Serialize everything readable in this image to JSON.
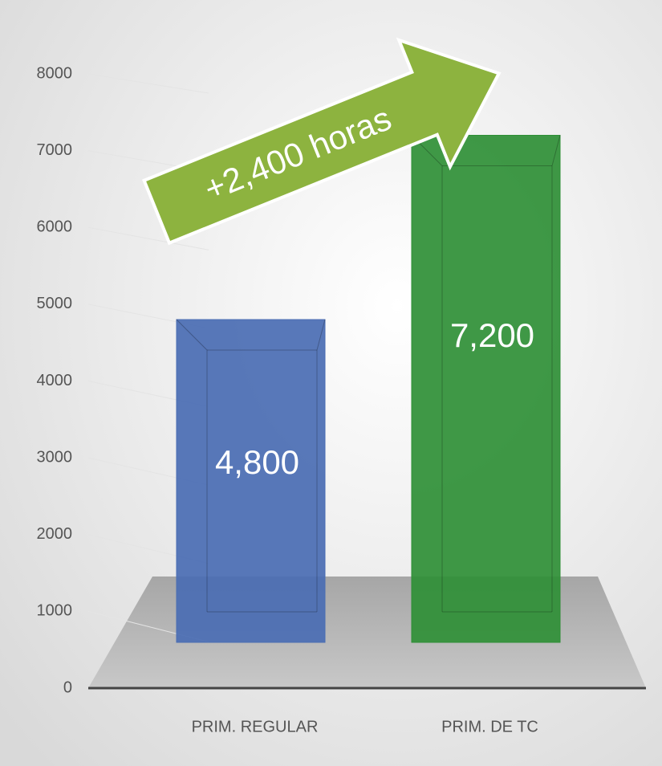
{
  "chart_data": {
    "type": "bar",
    "annotation": "+2,400 horas",
    "categories": [
      "PRIM. REGULAR",
      "PRIM. DE TC"
    ],
    "series": [
      {
        "values": [
          4800,
          7200
        ],
        "value_labels": [
          "4,800",
          "7,200"
        ],
        "colors": [
          "#4a6db3",
          "#2f8f36"
        ]
      }
    ],
    "ylim": [
      0,
      8000
    ],
    "yticks": [
      0,
      1000,
      2000,
      3000,
      4000,
      5000,
      6000,
      7000,
      8000
    ]
  }
}
